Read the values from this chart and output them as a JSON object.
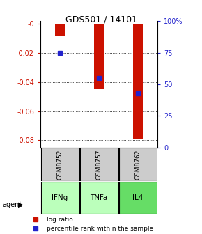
{
  "title": "GDS501 / 14101",
  "samples": [
    "GSM8752",
    "GSM8757",
    "GSM8762"
  ],
  "agents": [
    "IFNg",
    "TNFa",
    "IL4"
  ],
  "log_ratios": [
    -0.008,
    -0.045,
    -0.079
  ],
  "percentile_ranks": [
    75,
    55,
    43
  ],
  "ylim_left": [
    -0.085,
    0.002
  ],
  "ylim_right": [
    0,
    100
  ],
  "yticks_left": [
    0,
    -0.02,
    -0.04,
    -0.06,
    -0.08
  ],
  "yticks_right": [
    0,
    25,
    50,
    75,
    100
  ],
  "ytick_labels_left": [
    "-0",
    "-0.02",
    "-0.04",
    "-0.06",
    "-0.08"
  ],
  "ytick_labels_right": [
    "0",
    "25",
    "50",
    "75",
    "100%"
  ],
  "bar_color": "#cc1100",
  "square_color": "#2222cc",
  "sample_bg_color": "#cccccc",
  "agent_colors": [
    "#bbffbb",
    "#bbffbb",
    "#66dd66"
  ],
  "bar_width": 0.25,
  "legend_bar_label": "log ratio",
  "legend_sq_label": "percentile rank within the sample"
}
